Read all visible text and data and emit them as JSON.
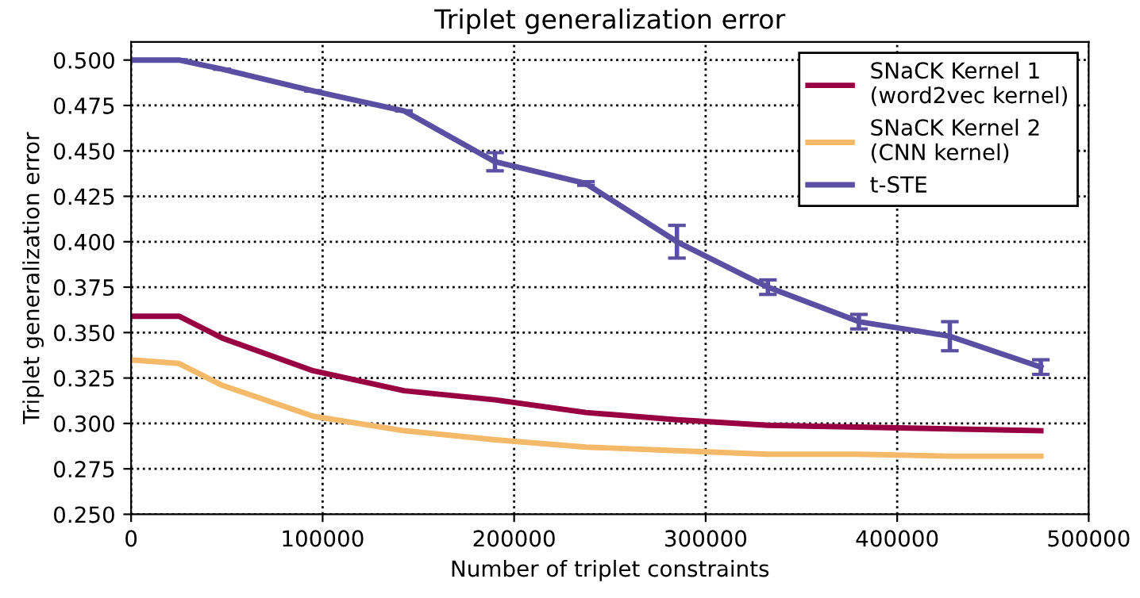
{
  "chart_data": {
    "type": "line",
    "title": "Triplet generalization error",
    "xlabel": "Number of triplet constraints",
    "ylabel": "Triplet generalization error",
    "x": [
      0,
      25000,
      47500,
      95000,
      142500,
      190000,
      237500,
      285000,
      332500,
      380000,
      427500,
      475000
    ],
    "series": [
      {
        "name": "SNaCK Kernel 1\n(word2vec kernel)",
        "color": "#990044",
        "values": [
          0.359,
          0.359,
          0.347,
          0.329,
          0.318,
          0.313,
          0.306,
          0.302,
          0.299,
          0.298,
          0.297,
          0.296
        ]
      },
      {
        "name": "SNaCK Kernel 2\n(CNN kernel)",
        "color": "#f5b96a",
        "values": [
          0.335,
          0.333,
          0.321,
          0.304,
          0.296,
          0.291,
          0.287,
          0.285,
          0.283,
          0.283,
          0.282,
          0.282
        ]
      },
      {
        "name": "t-STE",
        "color": "#5a4fa3",
        "values": [
          0.5,
          0.5,
          0.495,
          0.483,
          0.472,
          0.444,
          0.432,
          0.4,
          0.375,
          0.356,
          0.348,
          0.331
        ],
        "errors": [
          null,
          null,
          null,
          null,
          null,
          0.005,
          0.001,
          0.009,
          0.004,
          0.004,
          0.008,
          0.004
        ]
      }
    ],
    "xlim": [
      0,
      500000
    ],
    "xticks": [
      0,
      100000,
      200000,
      300000,
      400000,
      500000
    ],
    "ylim": [
      0.25,
      0.51
    ],
    "yticks": [
      {
        "value": 0.25,
        "label": "0.250"
      },
      {
        "value": 0.275,
        "label": "0.275"
      },
      {
        "value": 0.3,
        "label": "0.300"
      },
      {
        "value": 0.325,
        "label": "0.325"
      },
      {
        "value": 0.35,
        "label": "0.350"
      },
      {
        "value": 0.375,
        "label": "0.375"
      },
      {
        "value": 0.4,
        "label": "0.400"
      },
      {
        "value": 0.425,
        "label": "0.425"
      },
      {
        "value": 0.45,
        "label": "0.450"
      },
      {
        "value": 0.475,
        "label": "0.475"
      },
      {
        "value": 0.5,
        "label": "0.500"
      }
    ],
    "grid": true,
    "legend": "top right",
    "line_style": "solid"
  }
}
